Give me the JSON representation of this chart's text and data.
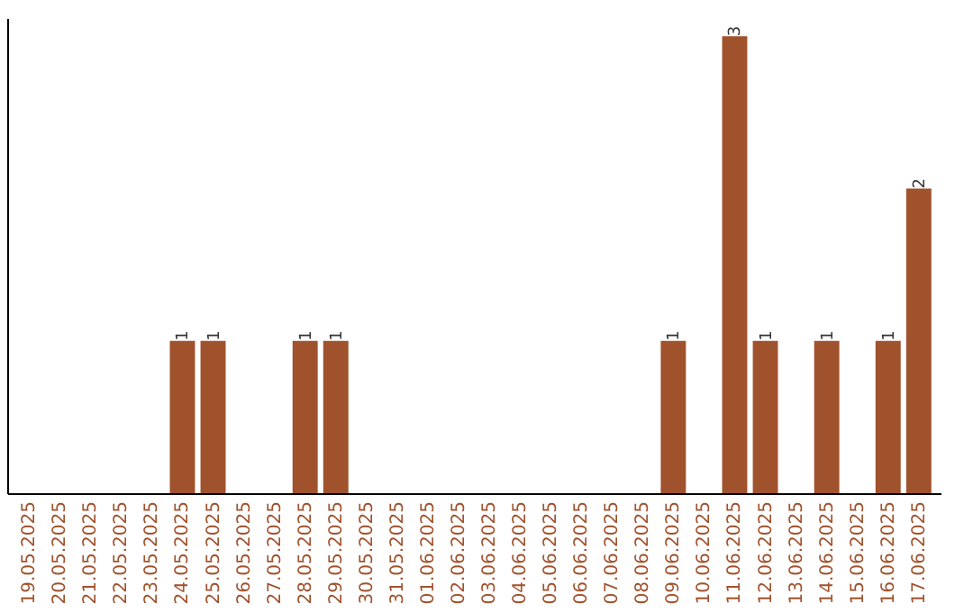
{
  "chart_data": {
    "type": "bar",
    "categories": [
      "19.05.2025",
      "20.05.2025",
      "21.05.2025",
      "22.05.2025",
      "23.05.2025",
      "24.05.2025",
      "25.05.2025",
      "26.05.2025",
      "27.05.2025",
      "28.05.2025",
      "29.05.2025",
      "30.05.2025",
      "31.05.2025",
      "01.06.2025",
      "02.06.2025",
      "03.06.2025",
      "04.06.2025",
      "05.06.2025",
      "06.06.2025",
      "07.06.2025",
      "08.06.2025",
      "09.06.2025",
      "10.06.2025",
      "11.06.2025",
      "12.06.2025",
      "13.06.2025",
      "14.06.2025",
      "15.06.2025",
      "16.06.2025",
      "17.06.2025"
    ],
    "values": [
      0,
      0,
      0,
      0,
      0,
      1,
      1,
      0,
      0,
      1,
      1,
      0,
      0,
      0,
      0,
      0,
      0,
      0,
      0,
      0,
      0,
      1,
      0,
      3,
      1,
      0,
      1,
      0,
      1,
      2
    ],
    "value_labels": [
      null,
      null,
      null,
      null,
      null,
      "1",
      "1",
      null,
      null,
      "1",
      "1",
      null,
      null,
      null,
      null,
      null,
      null,
      null,
      null,
      null,
      null,
      "1",
      null,
      "3",
      "1",
      null,
      "1",
      null,
      "1",
      "2"
    ],
    "color": "#a0522d"
  }
}
